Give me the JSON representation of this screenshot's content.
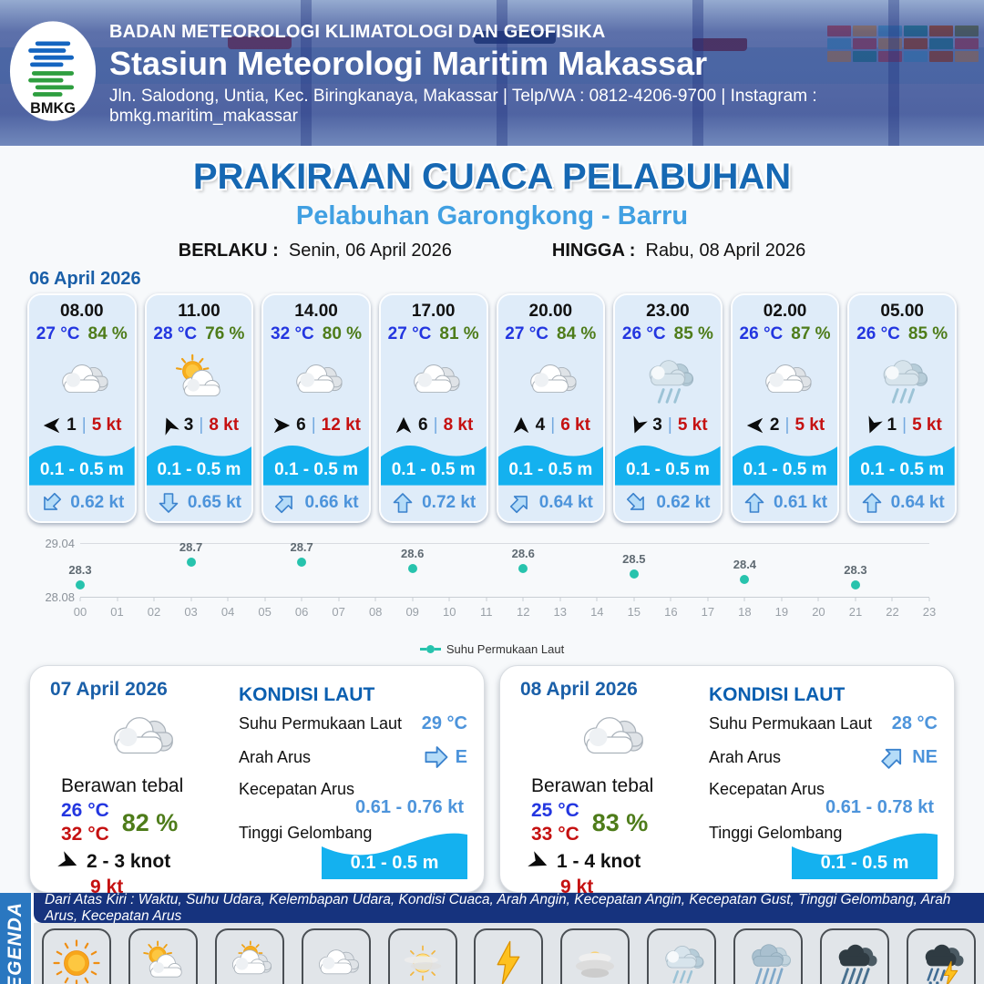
{
  "header": {
    "logo_label": "BMKG",
    "org": "BADAN METEOROLOGI KLIMATOLOGI DAN GEOFISIKA",
    "station": "Stasiun Meteorologi Maritim Makassar",
    "contact": "Jln. Salodong, Untia, Kec. Biringkanaya, Makassar | Telp/WA : 0812-4206-9700 | Instagram : bmkg.maritim_makassar"
  },
  "title": {
    "main": "PRAKIRAAN CUACA PELABUHAN",
    "subtitle": "Pelabuhan Garongkong - Barru",
    "valid_from_label": "BERLAKU :",
    "valid_from": "Senin, 06 April 2026",
    "valid_to_label": "HINGGA :",
    "valid_to": "Rabu, 08 April 2026"
  },
  "day1": {
    "date": "06 April 2026",
    "cards": [
      {
        "time": "08.00",
        "temp": "27 °C",
        "humidity": "84 %",
        "icon": "berawan-tebal",
        "wind_dir": "W",
        "wind_speed": "1",
        "gust": "5 kt",
        "wave": "0.1 - 0.5 m",
        "current_dir": "SW",
        "current_speed": "0.62 kt"
      },
      {
        "time": "11.00",
        "temp": "28 °C",
        "humidity": "76 %",
        "icon": "cerah-berawan",
        "wind_dir": "NNW",
        "wind_speed": "3",
        "gust": "8 kt",
        "wave": "0.1 - 0.5 m",
        "current_dir": "S",
        "current_speed": "0.65 kt"
      },
      {
        "time": "14.00",
        "temp": "32 °C",
        "humidity": "80 %",
        "icon": "berawan-tebal",
        "wind_dir": "E",
        "wind_speed": "6",
        "gust": "12 kt",
        "wave": "0.1 - 0.5 m",
        "current_dir": "NE",
        "current_speed": "0.66 kt"
      },
      {
        "time": "17.00",
        "temp": "27 °C",
        "humidity": "81 %",
        "icon": "berawan-tebal",
        "wind_dir": "N",
        "wind_speed": "6",
        "gust": "8 kt",
        "wave": "0.1 - 0.5 m",
        "current_dir": "N",
        "current_speed": "0.72 kt"
      },
      {
        "time": "20.00",
        "temp": "27 °C",
        "humidity": "84 %",
        "icon": "berawan-tebal",
        "wind_dir": "N",
        "wind_speed": "4",
        "gust": "6 kt",
        "wave": "0.1 - 0.5 m",
        "current_dir": "NE",
        "current_speed": "0.64 kt"
      },
      {
        "time": "23.00",
        "temp": "26 °C",
        "humidity": "85 %",
        "icon": "hujan-ringan",
        "wind_dir": "SSW",
        "wind_speed": "3",
        "gust": "5 kt",
        "wave": "0.1 - 0.5 m",
        "current_dir": "SE",
        "current_speed": "0.62 kt"
      },
      {
        "time": "02.00",
        "temp": "26 °C",
        "humidity": "87 %",
        "icon": "berawan-tebal",
        "wind_dir": "W",
        "wind_speed": "2",
        "gust": "5 kt",
        "wave": "0.1 - 0.5 m",
        "current_dir": "N",
        "current_speed": "0.61 kt"
      },
      {
        "time": "05.00",
        "temp": "26 °C",
        "humidity": "85 %",
        "icon": "hujan-ringan",
        "wind_dir": "SSW",
        "wind_speed": "1",
        "gust": "5 kt",
        "wave": "0.1 - 0.5 m",
        "current_dir": "N",
        "current_speed": "0.64 kt"
      }
    ]
  },
  "chart_data": {
    "type": "line",
    "title": "",
    "legend": "Suhu Permukaan Laut",
    "x": [
      0,
      3,
      6,
      9,
      12,
      15,
      18,
      21
    ],
    "values": [
      28.3,
      28.7,
      28.7,
      28.6,
      28.6,
      28.5,
      28.4,
      28.3
    ],
    "x_ticks": [
      "00",
      "01",
      "02",
      "03",
      "04",
      "05",
      "06",
      "07",
      "08",
      "09",
      "10",
      "11",
      "12",
      "13",
      "14",
      "15",
      "16",
      "17",
      "18",
      "19",
      "20",
      "21",
      "22",
      "23"
    ],
    "y_ticks": [
      "29.04",
      "28.08"
    ],
    "ylim": [
      28.08,
      29.04
    ],
    "grid": "top and bottom lines only",
    "legend_position": "bottom-center",
    "dot_color": "#27c3ad"
  },
  "day2": {
    "date": "07 April 2026",
    "icon": "berawan-tebal",
    "condition": "Berawan tebal",
    "temp_min": "26 °C",
    "temp_max": "32 °C",
    "humidity": "82 %",
    "wind_dir": "ESE",
    "wind": "2  - 3 knot",
    "gust": "9 kt",
    "sea": {
      "title": "KONDISI LAUT",
      "sst_label": "Suhu Permukaan Laut",
      "sst": "29 °C",
      "current_dir_label": "Arah Arus",
      "current_dir": "E",
      "current_speed_label": "Kecepatan Arus",
      "current_speed": "0.61  - 0.76 kt",
      "wave_label": "Tinggi Gelombang",
      "wave": "0.1 - 0.5 m"
    }
  },
  "day3": {
    "date": "08 April 2026",
    "icon": "berawan-tebal",
    "condition": "Berawan tebal",
    "temp_min": "25 °C",
    "temp_max": "33 °C",
    "humidity": "83 %",
    "wind_dir": "ESE",
    "wind": "1  - 4 knot",
    "gust": "9 kt",
    "sea": {
      "title": "KONDISI LAUT",
      "sst_label": "Suhu Permukaan Laut",
      "sst": "28 °C",
      "current_dir_label": "Arah Arus",
      "current_dir": "NE",
      "current_speed_label": "Kecepatan Arus",
      "current_speed": "0.61  - 0.78 kt",
      "wave_label": "Tinggi Gelombang",
      "wave": "0.1 - 0.5 m"
    }
  },
  "legend_bar": {
    "title": "LEGENDA",
    "description": "Dari Atas Kiri : Waktu, Suhu Udara, Kelembapan Udara, Kondisi Cuaca, Arah Angin, Kecepatan Angin, Kecepatan Gust, Tinggi Gelombang, Arah Arus, Kecepatan Arus",
    "items": [
      {
        "label": "Cerah",
        "icon": "cerah"
      },
      {
        "label": "Cerah Berawan",
        "icon": "cerah-berawan"
      },
      {
        "label": "Berawan",
        "icon": "berawan"
      },
      {
        "label": "Berawan Tebal",
        "icon": "berawan-tebal"
      },
      {
        "label": "Udara Kabur",
        "icon": "udara-kabur"
      },
      {
        "label": "Petir",
        "icon": "petir"
      },
      {
        "label": "Kabut",
        "icon": "kabut"
      },
      {
        "label": "Hujan Ringan",
        "icon": "hujan-ringan"
      },
      {
        "label": "Hujan Sedang",
        "icon": "hujan-sedang"
      },
      {
        "label": "Hujan Lebat",
        "icon": "hujan-lebat"
      },
      {
        "label": "Hujan Petir",
        "icon": "hujan-petir"
      }
    ]
  },
  "colors": {
    "accent_blue": "#1668b3",
    "light_blue": "#41a0e2",
    "temp_blue": "#2336e0",
    "humidity_green": "#4e7c1a",
    "gust_red": "#c51111",
    "wave_cyan": "#14b1ef",
    "current_blue": "#4d94db",
    "chart_dot_teal": "#27c3ad",
    "legend_strip_blue": "#2a77c0",
    "legend_desc_navy": "#16337e"
  }
}
